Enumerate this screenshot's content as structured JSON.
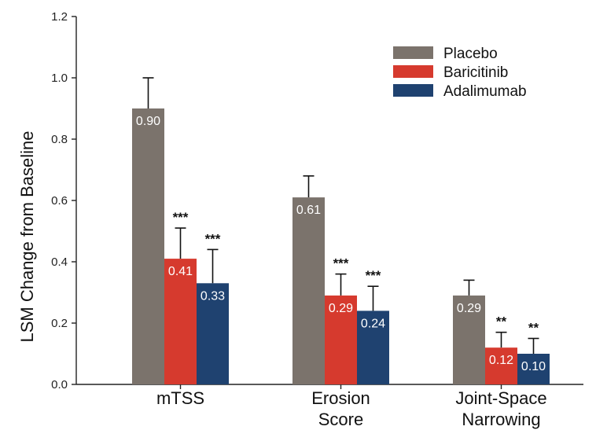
{
  "chart_data": {
    "type": "bar",
    "title": "",
    "xlabel": "",
    "ylabel": "LSM Change from Baseline",
    "ylim": [
      0,
      1.2
    ],
    "yticks": [
      "0.0",
      "0.2",
      "0.4",
      "0.6",
      "0.8",
      "1.0",
      "1.2"
    ],
    "ytick_values": [
      0,
      0.2,
      0.4,
      0.6,
      0.8,
      1.0,
      1.2
    ],
    "categories": [
      [
        "mTSS"
      ],
      [
        "Erosion",
        "Score"
      ],
      [
        "Joint-Space",
        "Narrowing"
      ]
    ],
    "series": [
      {
        "name": "Placebo",
        "color": "#7b736c",
        "values": [
          0.9,
          0.61,
          0.29
        ],
        "error_upper": [
          1.0,
          0.68,
          0.34
        ],
        "value_labels": [
          "0.90",
          "0.61",
          "0.29"
        ],
        "significance": [
          "",
          "",
          ""
        ]
      },
      {
        "name": "Baricitinib",
        "color": "#d63a2e",
        "values": [
          0.41,
          0.29,
          0.12
        ],
        "error_upper": [
          0.51,
          0.36,
          0.17
        ],
        "value_labels": [
          "0.41",
          "0.29",
          "0.12"
        ],
        "significance": [
          "***",
          "***",
          "**"
        ]
      },
      {
        "name": "Adalimumab",
        "color": "#1f4270",
        "values": [
          0.33,
          0.24,
          0.1
        ],
        "error_upper": [
          0.44,
          0.32,
          0.15
        ],
        "value_labels": [
          "0.33",
          "0.24",
          "0.10"
        ],
        "significance": [
          "***",
          "***",
          "**"
        ]
      }
    ],
    "legend_position": "top-right",
    "grid": false
  }
}
